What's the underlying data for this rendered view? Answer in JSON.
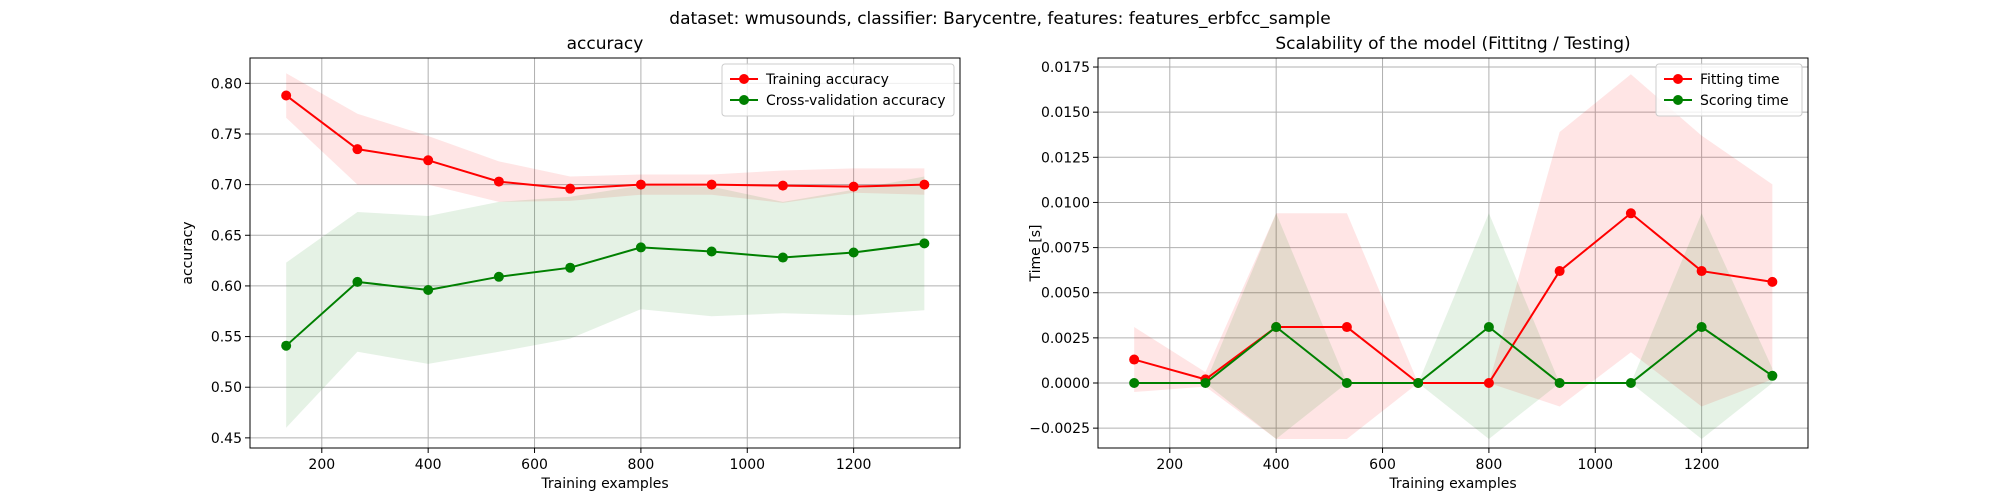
{
  "suptitle": "dataset: wmusounds, classifier: Barycentre, features: features_erbfcc_sample",
  "chart_data": [
    {
      "type": "line",
      "title": "accuracy",
      "xlabel": "Training examples",
      "ylabel": "accuracy",
      "xlim": [
        65,
        1400
      ],
      "ylim": [
        0.44,
        0.825
      ],
      "xticks": [
        200,
        400,
        600,
        800,
        1000,
        1200
      ],
      "yticks": [
        0.45,
        0.5,
        0.55,
        0.6,
        0.65,
        0.7,
        0.75,
        0.8
      ],
      "ytick_labels": [
        "0.45",
        "0.50",
        "0.55",
        "0.60",
        "0.65",
        "0.70",
        "0.75",
        "0.80"
      ],
      "grid": true,
      "legend": "top-right",
      "x": [
        133,
        267,
        400,
        533,
        667,
        800,
        933,
        1067,
        1200,
        1333
      ],
      "series": [
        {
          "name": "Training accuracy",
          "color": "#ff0000",
          "values": [
            0.788,
            0.735,
            0.724,
            0.703,
            0.696,
            0.7,
            0.7,
            0.699,
            0.698,
            0.7
          ],
          "lower": [
            0.766,
            0.7,
            0.7,
            0.683,
            0.684,
            0.69,
            0.69,
            0.682,
            0.692,
            0.69
          ],
          "upper": [
            0.81,
            0.77,
            0.748,
            0.723,
            0.708,
            0.71,
            0.71,
            0.714,
            0.716,
            0.716
          ]
        },
        {
          "name": "Cross-validation accuracy",
          "color": "#008000",
          "values": [
            0.541,
            0.604,
            0.596,
            0.609,
            0.618,
            0.638,
            0.634,
            0.628,
            0.633,
            0.642
          ],
          "lower": [
            0.46,
            0.535,
            0.523,
            0.535,
            0.548,
            0.577,
            0.57,
            0.573,
            0.571,
            0.576
          ],
          "upper": [
            0.623,
            0.673,
            0.669,
            0.683,
            0.688,
            0.699,
            0.698,
            0.683,
            0.695,
            0.708
          ]
        }
      ]
    },
    {
      "type": "line",
      "title": "Scalability of the model (Fittitng / Testing)",
      "xlabel": "Training examples",
      "ylabel": "Time [s]",
      "xlim": [
        65,
        1400
      ],
      "ylim": [
        -0.0036,
        0.018
      ],
      "xticks": [
        200,
        400,
        600,
        800,
        1000,
        1200
      ],
      "yticks": [
        -0.0025,
        0.0,
        0.0025,
        0.005,
        0.0075,
        0.01,
        0.0125,
        0.015,
        0.0175
      ],
      "ytick_labels": [
        "−0.0025",
        "0.0000",
        "0.0025",
        "0.0050",
        "0.0075",
        "0.0100",
        "0.0125",
        "0.0150",
        "0.0175"
      ],
      "grid": true,
      "legend": "top-right",
      "x": [
        133,
        267,
        400,
        533,
        667,
        800,
        933,
        1067,
        1200,
        1333
      ],
      "series": [
        {
          "name": "Fitting time",
          "color": "#ff0000",
          "values": [
            0.0013,
            0.0002,
            0.0031,
            0.0031,
            0.0,
            0.0,
            0.0062,
            0.0094,
            0.0062,
            0.0056
          ],
          "lower": [
            -0.0005,
            -0.0002,
            -0.0031,
            -0.0031,
            0.0,
            0.0,
            -0.0013,
            0.0017,
            -0.0013,
            0.0002
          ],
          "upper": [
            0.0031,
            0.0006,
            0.0094,
            0.0094,
            0.0,
            0.0,
            0.0139,
            0.0171,
            0.0137,
            0.011
          ]
        },
        {
          "name": "Scoring time",
          "color": "#008000",
          "values": [
            0.0,
            0.0,
            0.0031,
            0.0,
            0.0,
            0.0031,
            0.0,
            0.0,
            0.0031,
            0.0004
          ],
          "lower": [
            0.0,
            0.0,
            -0.0031,
            0.0,
            0.0,
            -0.0031,
            0.0,
            0.0,
            -0.0031,
            0.0
          ],
          "upper": [
            0.0,
            0.0,
            0.0094,
            0.0,
            0.0,
            0.0094,
            0.0,
            0.0,
            0.0094,
            0.0008
          ]
        }
      ]
    }
  ]
}
